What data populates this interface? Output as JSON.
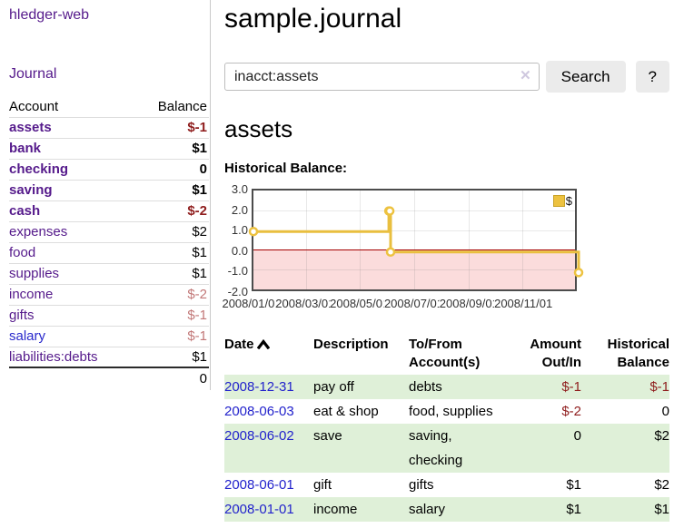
{
  "brand": {
    "title": "hledger-web"
  },
  "sidebar": {
    "journal_link": "Journal",
    "accounts": {
      "col_account": "Account",
      "col_balance": "Balance",
      "rows": [
        {
          "name": "assets",
          "balance": "$-1"
        },
        {
          "name": "bank",
          "balance": "$1"
        },
        {
          "name": "checking",
          "balance": "0"
        },
        {
          "name": "saving",
          "balance": "$1"
        },
        {
          "name": "cash",
          "balance": "$-2"
        },
        {
          "name": "expenses",
          "balance": "$2"
        },
        {
          "name": "food",
          "balance": "$1"
        },
        {
          "name": "supplies",
          "balance": "$1"
        },
        {
          "name": "income",
          "balance": "$-2"
        },
        {
          "name": "gifts",
          "balance": "$-1"
        },
        {
          "name": "salary",
          "balance": "$-1"
        },
        {
          "name": "liabilities:debts",
          "balance": "$1"
        }
      ],
      "total": "0"
    }
  },
  "main": {
    "title": "sample.journal",
    "search": {
      "value": "inacct:assets",
      "clear_icon": "✕",
      "button": "Search",
      "help": "?"
    },
    "account_heading": "assets"
  },
  "chart_data": {
    "type": "line",
    "style": "step",
    "title": "Historical Balance:",
    "legend": [
      {
        "label": "$",
        "color": "#edc240"
      }
    ],
    "x_span_days": 365,
    "ylim": [
      -2,
      3
    ],
    "y_ticks": [
      "3.0",
      "2.0",
      "1.0",
      "0.0",
      "-1.0",
      "-2.0"
    ],
    "x_tick_labels": [
      "2008/01/01",
      "2008/03/01",
      "2008/05/01",
      "2008/07/01",
      "2008/09/01",
      "2008/11/01"
    ],
    "series": [
      {
        "name": "$",
        "points": [
          {
            "date": "2008-01-01",
            "day": 0,
            "value": 1
          },
          {
            "date": "2008-06-01",
            "day": 152,
            "value": 2
          },
          {
            "date": "2008-06-02",
            "day": 153,
            "value": 2
          },
          {
            "date": "2008-06-03",
            "day": 154,
            "value": 0
          },
          {
            "date": "2008-12-31",
            "day": 365,
            "value": -1
          }
        ]
      }
    ],
    "negative_region_color": "#fbdcdc",
    "zero_line_color": "#a40000",
    "line_color": "#edc240",
    "grid": true,
    "legend_position": "top-right"
  },
  "transactions": {
    "headers": {
      "date": "Date",
      "sort_icon": "chevron-up",
      "description": "Description",
      "account": "To/From Account(s)",
      "amount": "Amount Out/In",
      "balance": "Historical Balance"
    },
    "rows": [
      {
        "date": "2008-12-31",
        "description": "pay off",
        "accounts": "debts",
        "amount": "$-1",
        "balance": "$-1"
      },
      {
        "date": "2008-06-03",
        "description": "eat & shop",
        "accounts": "food, supplies",
        "amount": "$-2",
        "balance": "0"
      },
      {
        "date": "2008-06-02",
        "description": "save",
        "accounts": "saving, checking",
        "amount": "0",
        "balance": "$2"
      },
      {
        "date": "2008-06-01",
        "description": "gift",
        "accounts": "gifts",
        "amount": "$1",
        "balance": "$2"
      },
      {
        "date": "2008-01-01",
        "description": "income",
        "accounts": "salary",
        "amount": "$1",
        "balance": "$1"
      }
    ]
  },
  "colors": {
    "link_purple": "#551a8b",
    "link_blue": "#2222cc",
    "negative_strong": "#8f1d1d",
    "negative_muted": "#c27878",
    "row_green": "#dff0d8"
  }
}
